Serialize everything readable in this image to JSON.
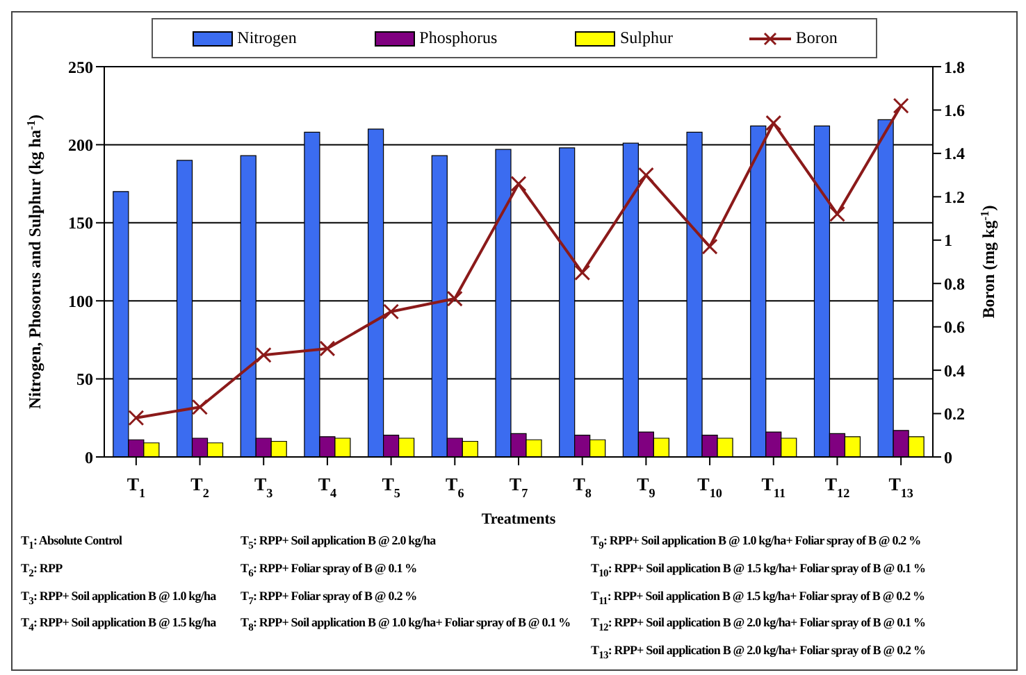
{
  "chart_data": {
    "type": "bar",
    "xlabel": "Treatments",
    "ylabel": "Nitrogen, Phosorus and Sulphur (kg ha$^{-1}$)",
    "y2label": "Boron (mg kg$^{-1}$)",
    "categories": [
      "T$_{1}$",
      "T$_{2}$",
      "T$_{3}$",
      "T$_{4}$",
      "T$_{5}$",
      "T$_{6}$",
      "T$_{7}$",
      "T$_{8}$",
      "T$_{9}$",
      "T$_{10}$",
      "T$_{11}$",
      "T$_{12}$",
      "T$_{13}$"
    ],
    "series": [
      {
        "name": "Nitrogen",
        "color": "#3b6cf0",
        "values": [
          170,
          190,
          193,
          208,
          210,
          193,
          197,
          198,
          201,
          208,
          212,
          212,
          216
        ]
      },
      {
        "name": "Phosphorus",
        "color": "#800080",
        "values": [
          11,
          12,
          12,
          13,
          14,
          12,
          15,
          14,
          16,
          14,
          16,
          15,
          17
        ]
      },
      {
        "name": "Sulphur",
        "color": "#ffff00",
        "values": [
          9,
          9,
          10,
          12,
          12,
          10,
          11,
          11,
          12,
          12,
          12,
          13,
          13
        ]
      },
      {
        "name": "Boron",
        "type": "line",
        "axis": "y2",
        "color": "#8b1a1a",
        "values": [
          0.18,
          0.23,
          0.47,
          0.5,
          0.67,
          0.73,
          1.26,
          0.85,
          1.3,
          0.97,
          1.54,
          1.12,
          1.62
        ]
      }
    ],
    "ylim": [
      0,
      250
    ],
    "yticks": [
      0,
      50,
      100,
      150,
      200,
      250
    ],
    "y2lim": [
      0,
      1.8
    ],
    "y2ticks": [
      0,
      0.2,
      0.4,
      0.6,
      0.8,
      1,
      1.2,
      1.4,
      1.6,
      1.8
    ],
    "grid": "y",
    "legend": "top",
    "marker": "cross",
    "line_style": "solid",
    "annotations": [
      "T$_{1}$: Absolute Control",
      "T$_{2}$: RPP",
      "T$_{3}$: RPP+ Soil application B @ 1.0 kg/ha",
      "T$_{4}$: RPP+ Soil application B @ 1.5 kg/ha",
      "T$_{5}$: RPP+ Soil application B @ 2.0 kg/ha",
      "T$_{6}$: RPP+ Foliar spray of B @ 0.1 %",
      "T$_{7}$: RPP+ Foliar spray of B @ 0.2 %",
      "T$_{8}$: RPP+ Soil application B @ 1.0 kg/ha+ Foliar spray of B @ 0.1 %",
      "T$_{9}$: RPP+ Soil application B @ 1.0 kg/ha+ Foliar spray of B @ 0.2 %",
      "T$_{10}$: RPP+ Soil application B @ 1.5 kg/ha+ Foliar spray of B @ 0.1 %",
      "T$_{11}$: RPP+ Soil application B @ 1.5 kg/ha+ Foliar spray of B @ 0.2 %",
      "T$_{12}$: RPP+ Soil application B @ 2.0 kg/ha+ Foliar spray of B @ 0.1 %",
      "T$_{13}$: RPP+ Soil application B @ 2.0 kg/ha+ Foliar spray of B @ 0.2 %"
    ]
  }
}
